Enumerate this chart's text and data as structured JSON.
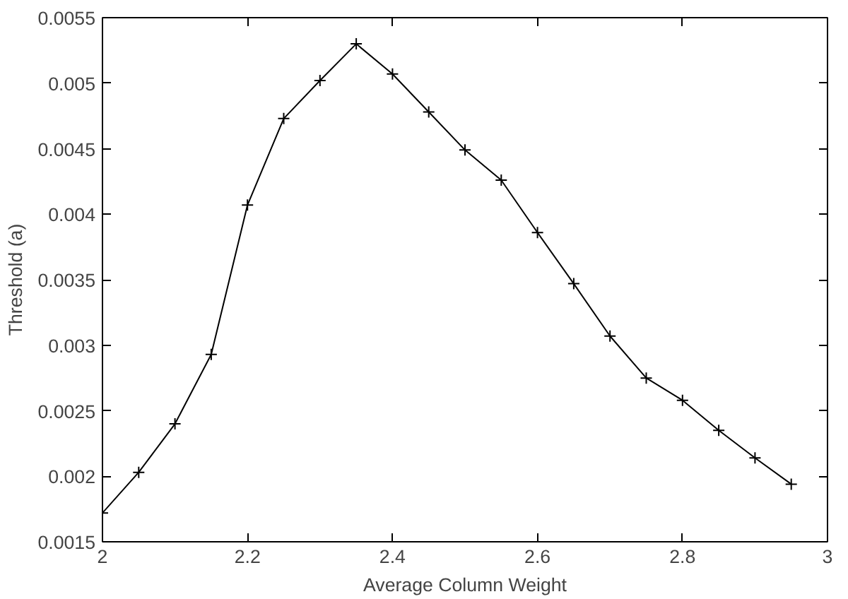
{
  "chart_data": {
    "type": "line",
    "xlabel": "Average Column Weight",
    "ylabel": "Threshold (a)",
    "x": [
      2.0,
      2.05,
      2.1,
      2.15,
      2.2,
      2.25,
      2.3,
      2.35,
      2.4,
      2.45,
      2.5,
      2.55,
      2.6,
      2.65,
      2.7,
      2.75,
      2.8,
      2.85,
      2.9,
      2.95
    ],
    "series": [
      {
        "color": "#000000",
        "values": [
          0.00172,
          0.00203,
          0.0024,
          0.00293,
          0.00407,
          0.00473,
          0.00502,
          0.0053,
          0.00507,
          0.00478,
          0.00449,
          0.00426,
          0.00386,
          0.00347,
          0.00307,
          0.00275,
          0.00258,
          0.00235,
          0.00214,
          0.00194
        ]
      }
    ],
    "xlim": [
      2,
      3
    ],
    "ylim": [
      0.0015,
      0.0055
    ],
    "xticks": [
      2,
      2.2,
      2.4,
      2.6,
      2.8,
      3
    ],
    "yticks": [
      0.0015,
      0.002,
      0.0025,
      0.003,
      0.0035,
      0.004,
      0.0045,
      0.005,
      0.0055
    ],
    "grid": false,
    "marker": "cross",
    "line_style": "solid"
  }
}
